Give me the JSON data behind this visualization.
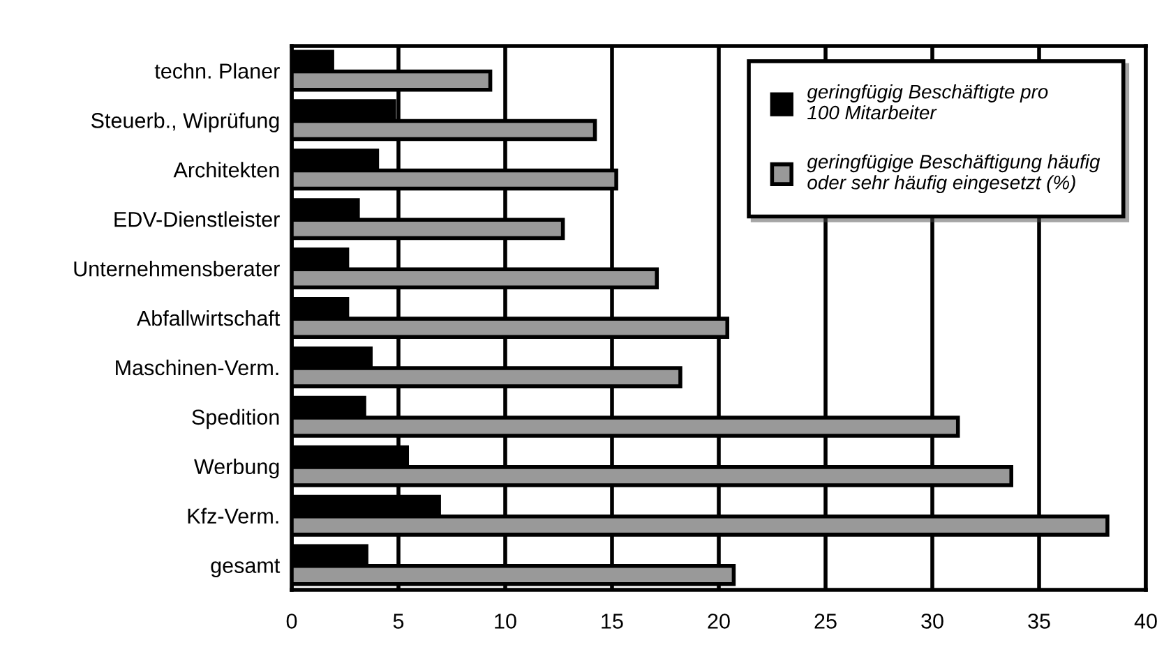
{
  "chart_data": {
    "type": "bar",
    "orientation": "horizontal",
    "categories": [
      "techn. Planer",
      "Steuerb., Wiprüfung",
      "Architekten",
      "EDV-Dienstleister",
      "Unternehmensberater",
      "Abfallwirtschaft",
      "Maschinen-Verm.",
      "Spedition",
      "Werbung",
      "Kfz-Verm.",
      "gesamt"
    ],
    "series": [
      {
        "name": "geringfügig Beschäftigte pro\n100 Mitarbeiter",
        "color": "#000000",
        "values": [
          1.9,
          4.8,
          4.0,
          3.1,
          2.6,
          2.6,
          3.7,
          3.4,
          5.4,
          6.9,
          3.5
        ]
      },
      {
        "name": "geringfügige Beschäftigung häufig\noder sehr häufig eingesetzt (%)",
        "color": "#999999",
        "values": [
          9.3,
          14.2,
          15.2,
          12.7,
          17.1,
          20.4,
          18.2,
          31.2,
          33.7,
          38.2,
          20.7
        ]
      }
    ],
    "xlim": [
      0,
      40
    ],
    "xticks": [
      0,
      5,
      10,
      15,
      20,
      25,
      30,
      35,
      40
    ],
    "grid": "x",
    "legend": "top right"
  }
}
